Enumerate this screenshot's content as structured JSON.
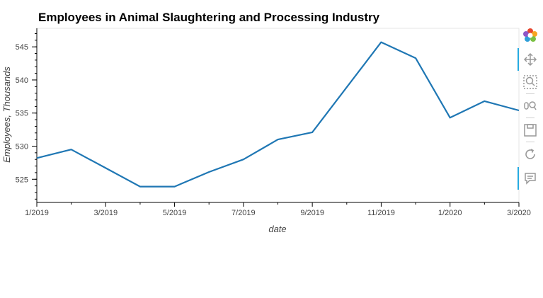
{
  "chart_data": {
    "type": "line",
    "title": "Employees in Animal Slaughtering and Processing Industry",
    "xlabel": "date",
    "ylabel": "Employees, Thousands",
    "x": [
      "2019-01",
      "2019-02",
      "2019-03",
      "2019-04",
      "2019-05",
      "2019-06",
      "2019-07",
      "2019-08",
      "2019-09",
      "2019-10",
      "2019-11",
      "2019-12",
      "2020-01",
      "2020-02",
      "2020-03"
    ],
    "x_tick_labels": [
      "1/2019",
      "3/2019",
      "5/2019",
      "7/2019",
      "9/2019",
      "11/2019",
      "1/2020",
      "3/2020"
    ],
    "y_ticks": [
      525,
      530,
      535,
      540,
      545
    ],
    "ylim": [
      521.5,
      547.8
    ],
    "series": [
      {
        "values": [
          528.2,
          529.5,
          526.7,
          523.9,
          523.9,
          526.1,
          528.0,
          531.0,
          532.1,
          538.9,
          545.7,
          543.3,
          534.3,
          536.8,
          535.4
        ],
        "color": "#1f77b4"
      }
    ],
    "grid": false
  },
  "toolbar": {
    "tools": [
      "bokeh-logo-icon",
      "pan-icon",
      "box-zoom-icon",
      "wheel-zoom-icon",
      "save-icon",
      "reset-icon",
      "hover-icon"
    ]
  }
}
